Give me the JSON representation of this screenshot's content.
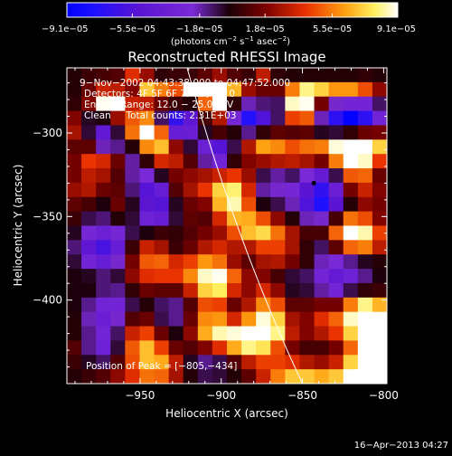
{
  "chart_data": {
    "type": "heatmap",
    "title": "Reconstructed RHESSI Image",
    "xlabel": "Heliocentric X (arcsec)",
    "ylabel": "Heliocentric Y (arcsec)",
    "xlim": [
      -995,
      -798
    ],
    "ylim": [
      -450,
      -261
    ],
    "xticks": [
      -950,
      -900,
      -850,
      -800
    ],
    "xtick_labels": [
      "−950",
      "−900",
      "−850",
      "−800"
    ],
    "yticks": [
      -300,
      -350,
      -400
    ],
    "ytick_labels": [
      "−300",
      "−350",
      "−400"
    ],
    "colorbar": {
      "ticks": [
        -9.1e-05,
        -5.5e-05,
        -1.8e-05,
        1.8e-05,
        5.5e-05,
        9.1e-05
      ],
      "tick_labels": [
        "−9.1e−05",
        "−5.5e−05",
        "−1.8e−05",
        "1.8e−05",
        "5.5e−05",
        "9.1e−05"
      ],
      "unit_prefix": "(photons cm",
      "unit_sup1": "−2",
      "unit_mid": " s",
      "unit_sup2": "−1",
      "unit_mid2": " asec",
      "unit_sup3": "−2",
      "unit_suffix": ")"
    },
    "annotations": {
      "time_range": "9−Nov−2002 04:43:38.000 to 04:47:52.000",
      "detectors": "Detectors: 4F 5F 6F 7F 8F, Att 0",
      "energy": "Energy Range: 12.0 − 25.0 keV",
      "clean": "Clean     Total counts: 2.31E+03",
      "peak": "Position of Peak = [−805,−434]"
    },
    "footer_date": "16−Apr−2013 04:27",
    "grid": false,
    "legend": "colorbar top",
    "peak_position": [
      -805,
      -434
    ],
    "min_position": [
      -843,
      -330
    ],
    "limb_curve": [
      [
        -921,
        -261
      ],
      [
        -850,
        -450
      ]
    ],
    "image_grid": {
      "cols": 22,
      "rows": 22,
      "values": [
        [
          0.0,
          0.02,
          0.03,
          0.04,
          0.16,
          0.1,
          0.01,
          0.02,
          0.02,
          0.05,
          0.1,
          0.04,
          0.02,
          0.13,
          0.01,
          0.0,
          0.0,
          0.0,
          0.0,
          0.0,
          0.01,
          0.0
        ],
        [
          0.0,
          0.06,
          0.14,
          0.13,
          0.08,
          0.3,
          0.23,
          0.19,
          0.47,
          0.75,
          0.49,
          0.28,
          0.1,
          0.06,
          0.06,
          0.23,
          0.36,
          0.31,
          0.25,
          0.25,
          0.19,
          0.09
        ],
        [
          0.01,
          0.08,
          0.41,
          0.48,
          0.14,
          0.13,
          0.06,
          0.02,
          0.0,
          0.21,
          0.42,
          0.01,
          -0.09,
          -0.06,
          -0.05,
          0.39,
          0.41,
          0.07,
          -0.1,
          -0.13,
          -0.13,
          -0.05
        ],
        [
          0.08,
          -0.02,
          -0.01,
          0.1,
          0.2,
          0.24,
          -0.05,
          -0.31,
          -0.21,
          0.03,
          0.12,
          -0.12,
          -0.34,
          -0.25,
          -0.05,
          0.18,
          0.2,
          -0.09,
          -0.32,
          -0.41,
          -0.32,
          -0.14
        ],
        [
          0.11,
          -0.03,
          -0.2,
          -0.03,
          0.22,
          0.42,
          0.21,
          -0.18,
          -0.17,
          -0.02,
          0.03,
          0.0,
          -0.07,
          0.01,
          0.05,
          0.04,
          0.05,
          -0.02,
          -0.03,
          0.01,
          0.06,
          0.07
        ],
        [
          0.05,
          0.05,
          -0.09,
          -0.07,
          0.0,
          0.24,
          0.29,
          0.09,
          -0.03,
          -0.16,
          -0.24,
          -0.04,
          0.12,
          0.26,
          0.24,
          0.19,
          0.22,
          0.23,
          0.4,
          0.61,
          0.58,
          0.31
        ],
        [
          0.07,
          0.17,
          0.15,
          0.06,
          -0.08,
          0.01,
          0.15,
          0.13,
          0.04,
          -0.08,
          -0.14,
          0.01,
          0.08,
          0.1,
          0.12,
          0.13,
          0.11,
          0.07,
          0.23,
          0.45,
          0.39,
          0.17
        ],
        [
          0.07,
          0.13,
          0.11,
          0.04,
          -0.08,
          -0.11,
          -0.02,
          0.07,
          0.09,
          0.11,
          0.14,
          0.17,
          0.1,
          -0.04,
          -0.08,
          -0.05,
          -0.11,
          -0.19,
          -0.04,
          0.2,
          0.21,
          0.06
        ],
        [
          0.1,
          0.12,
          0.06,
          0.05,
          -0.06,
          -0.24,
          -0.18,
          0.04,
          0.11,
          0.17,
          0.31,
          0.35,
          0.15,
          -0.08,
          -0.1,
          -0.12,
          -0.23,
          -0.31,
          -0.17,
          0.07,
          0.14,
          0.08
        ],
        [
          0.05,
          0.03,
          -0.01,
          0.06,
          -0.02,
          -0.22,
          -0.24,
          -0.02,
          0.06,
          0.08,
          0.28,
          0.38,
          0.19,
          -0.01,
          -0.04,
          -0.09,
          -0.25,
          -0.35,
          -0.23,
          0.0,
          0.09,
          0.07
        ],
        [
          0.02,
          -0.04,
          -0.06,
          0.0,
          -0.03,
          -0.15,
          -0.18,
          -0.03,
          0.05,
          0.04,
          0.15,
          0.28,
          0.27,
          0.19,
          0.09,
          0.0,
          -0.09,
          -0.1,
          0.03,
          0.22,
          0.19,
          0.08
        ],
        [
          -0.02,
          -0.12,
          -0.16,
          -0.12,
          -0.04,
          -0.01,
          0.02,
          0.01,
          0.04,
          0.07,
          0.1,
          0.19,
          0.29,
          0.32,
          0.22,
          0.11,
          0.03,
          0.03,
          0.21,
          0.43,
          0.38,
          0.18
        ],
        [
          -0.06,
          -0.21,
          -0.27,
          -0.18,
          0.02,
          0.14,
          0.11,
          0.02,
          0.06,
          0.12,
          0.15,
          0.12,
          0.12,
          0.18,
          0.18,
          0.11,
          0.01,
          -0.05,
          0.05,
          0.21,
          0.23,
          0.13
        ],
        [
          -0.03,
          -0.13,
          -0.18,
          -0.1,
          0.07,
          0.2,
          0.21,
          0.15,
          0.18,
          0.25,
          0.22,
          0.1,
          0.05,
          0.11,
          0.12,
          0.07,
          0.01,
          -0.09,
          -0.11,
          -0.07,
          -0.02,
          0.0
        ],
        [
          -0.01,
          -0.02,
          -0.06,
          -0.03,
          0.09,
          0.16,
          0.17,
          0.17,
          0.24,
          0.39,
          0.41,
          0.21,
          0.09,
          0.08,
          0.03,
          -0.03,
          -0.05,
          -0.13,
          -0.19,
          -0.15,
          -0.07,
          -0.01
        ],
        [
          -0.01,
          -0.01,
          -0.06,
          -0.07,
          0.01,
          0.06,
          0.05,
          0.05,
          0.14,
          0.31,
          0.34,
          0.15,
          0.09,
          0.15,
          0.09,
          -0.02,
          -0.03,
          -0.08,
          -0.13,
          -0.04,
          0.01,
          0.02
        ],
        [
          -0.01,
          -0.07,
          -0.14,
          -0.13,
          -0.04,
          0.0,
          -0.05,
          -0.07,
          0.04,
          0.19,
          0.18,
          0.06,
          0.12,
          0.24,
          0.19,
          0.05,
          0.05,
          0.07,
          0.07,
          0.23,
          0.36,
          0.28
        ],
        [
          0.0,
          -0.09,
          -0.17,
          -0.1,
          0.04,
          0.06,
          -0.04,
          -0.07,
          0.06,
          0.24,
          0.25,
          0.15,
          0.25,
          0.4,
          0.31,
          0.11,
          0.08,
          0.16,
          0.21,
          0.39,
          0.62,
          0.51
        ],
        [
          0.0,
          -0.07,
          -0.14,
          -0.05,
          0.14,
          0.18,
          0.06,
          -0.01,
          0.09,
          0.27,
          0.38,
          0.4,
          0.49,
          0.55,
          0.36,
          0.13,
          0.08,
          0.12,
          0.17,
          0.31,
          0.53,
          0.49
        ],
        [
          0.04,
          -0.07,
          -0.15,
          -0.03,
          0.2,
          0.29,
          0.18,
          0.06,
          0.04,
          0.08,
          0.16,
          0.27,
          0.36,
          0.33,
          0.19,
          0.07,
          0.03,
          0.03,
          0.07,
          0.21,
          0.42,
          0.42
        ],
        [
          0.02,
          -0.02,
          -0.05,
          0.04,
          0.19,
          0.29,
          0.27,
          0.13,
          -0.02,
          -0.07,
          -0.04,
          0.04,
          0.13,
          0.18,
          0.18,
          0.16,
          0.12,
          0.1,
          0.14,
          0.31,
          0.54,
          0.51
        ],
        [
          0.0,
          0.02,
          0.04,
          0.09,
          0.16,
          0.22,
          0.21,
          0.11,
          0.0,
          -0.04,
          -0.03,
          0.0,
          0.05,
          0.14,
          0.23,
          0.3,
          0.3,
          0.27,
          0.3,
          0.44,
          0.61,
          0.45
        ]
      ]
    }
  }
}
